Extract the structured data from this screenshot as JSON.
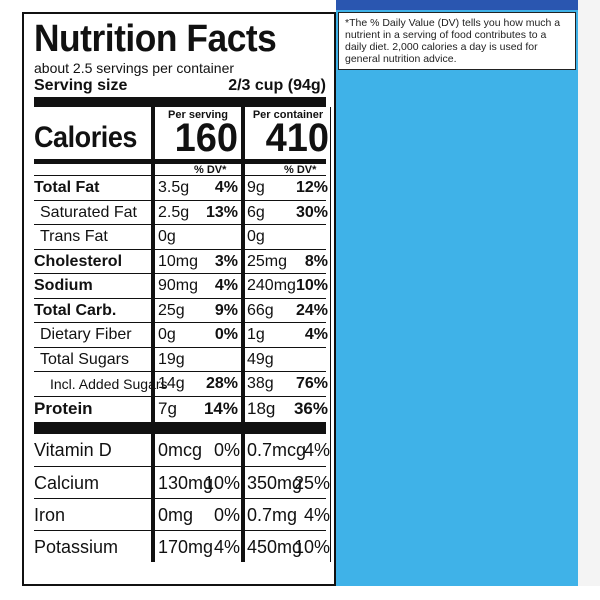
{
  "footnote": "*The % Daily Value (DV) tells you how much a nutrient in a serving of food contributes to a daily diet. 2,000 calories a day is used for general nutrition advice.",
  "label": {
    "title": "Nutrition Facts",
    "servings": "about 2.5 servings per container",
    "serving_size_label": "Serving size",
    "serving_size_value": "2/3 cup (94g)",
    "per_serving_head": "Per serving",
    "per_container_head": "Per container",
    "calories_label": "Calories",
    "calories_serving": "160",
    "calories_container": "410",
    "dv_head": "% DV*",
    "nutrients": [
      {
        "name": "Total Fat",
        "s_amt": "3.5g",
        "s_dv": "4%",
        "c_amt": "9g",
        "c_dv": "12%"
      },
      {
        "name": "Saturated Fat",
        "s_amt": "2.5g",
        "s_dv": "13%",
        "c_amt": "6g",
        "c_dv": "30%"
      },
      {
        "name": "Trans Fat",
        "s_amt": "0g",
        "s_dv": "",
        "c_amt": "0g",
        "c_dv": ""
      },
      {
        "name": "Cholesterol",
        "s_amt": "10mg",
        "s_dv": "3%",
        "c_amt": "25mg",
        "c_dv": "8%"
      },
      {
        "name": "Sodium",
        "s_amt": "90mg",
        "s_dv": "4%",
        "c_amt": "240mg",
        "c_dv": "10%"
      },
      {
        "name": "Total Carb.",
        "s_amt": "25g",
        "s_dv": "9%",
        "c_amt": "66g",
        "c_dv": "24%"
      },
      {
        "name": "Dietary Fiber",
        "s_amt": "0g",
        "s_dv": "0%",
        "c_amt": "1g",
        "c_dv": "4%"
      },
      {
        "name": "Total Sugars",
        "s_amt": "19g",
        "s_dv": "",
        "c_amt": "49g",
        "c_dv": ""
      },
      {
        "name": "Incl. Added Sugars",
        "s_amt": "14g",
        "s_dv": "28%",
        "c_amt": "38g",
        "c_dv": "76%"
      },
      {
        "name": "Protein",
        "s_amt": "7g",
        "s_dv": "14%",
        "c_amt": "18g",
        "c_dv": "36%"
      }
    ],
    "vitamins": [
      {
        "name": "Vitamin D",
        "s_amt": "0mcg",
        "s_dv": "0%",
        "c_amt": "0.7mcg",
        "c_dv": "4%"
      },
      {
        "name": "Calcium",
        "s_amt": "130mg",
        "s_dv": "10%",
        "c_amt": "350mg",
        "c_dv": "25%"
      },
      {
        "name": "Iron",
        "s_amt": "0mg",
        "s_dv": "0%",
        "c_amt": "0.7mg",
        "c_dv": "4%"
      },
      {
        "name": "Potassium",
        "s_amt": "170mg",
        "s_dv": "4%",
        "c_amt": "450mg",
        "c_dv": "10%"
      }
    ]
  }
}
